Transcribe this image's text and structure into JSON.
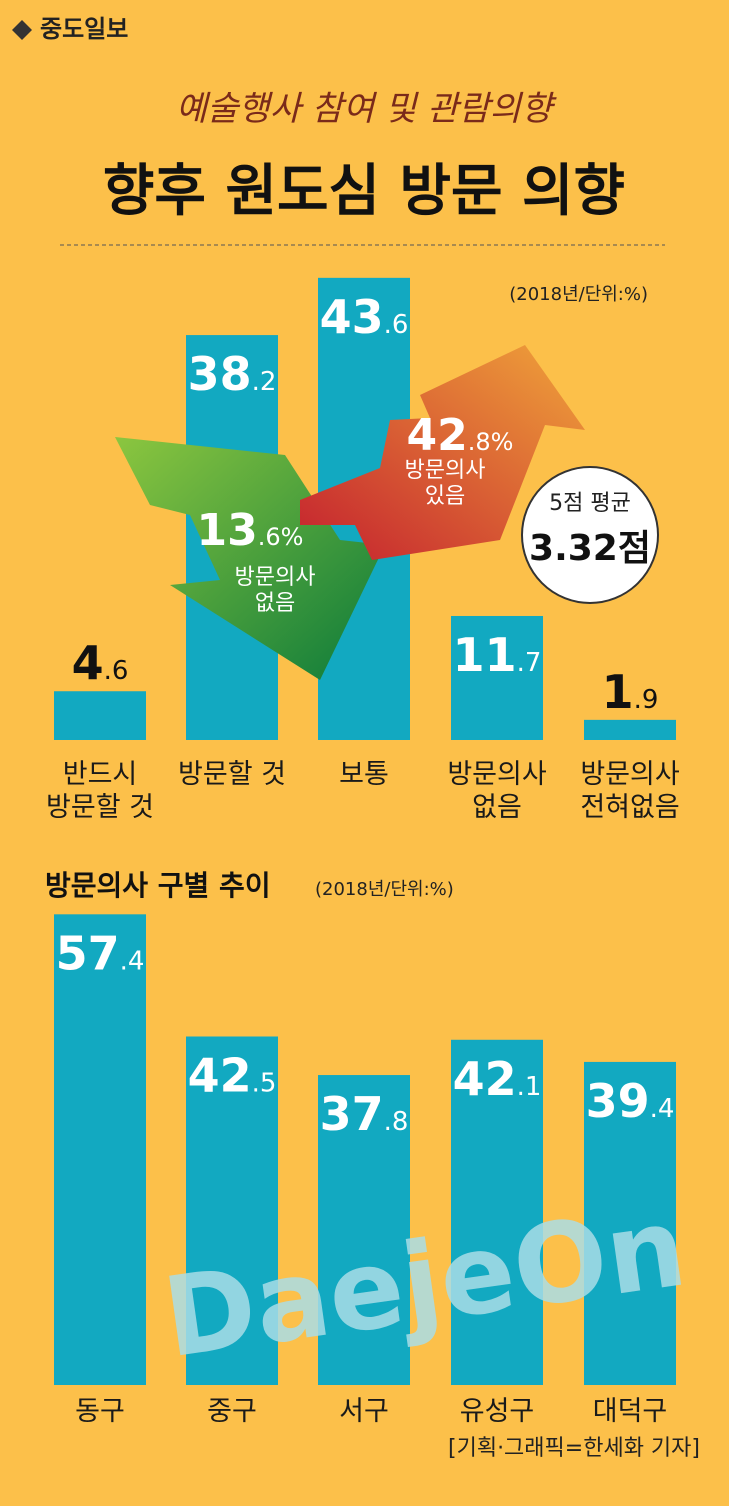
{
  "header": {
    "logo": "중도일보",
    "kicker": "예술행사 참여 및 관람의향",
    "title": "향후 원도심 방문 의향"
  },
  "chart_data": [
    {
      "type": "bar",
      "subtitle": "(2018년/단위:%)",
      "color": "#12a9c1",
      "categories": [
        "반드시\n방문할 것",
        "방문할 것",
        "보통",
        "방문의사\n없음",
        "방문의사\n전혀없음"
      ],
      "values": [
        4.6,
        38.2,
        43.6,
        11.7,
        1.9
      ],
      "annotations": [
        {
          "value_label": "13.6%",
          "label": "방문의사\n없음"
        },
        {
          "value_label": "42.8%",
          "label": "방문의사\n있음"
        }
      ],
      "mean": {
        "label": "5점 평균",
        "value_label": "3.32점"
      }
    },
    {
      "type": "bar",
      "title": "방문의사 구별 추이",
      "subtitle": "(2018년/단위:%)",
      "color": "#12a9c1",
      "categories": [
        "동구",
        "중구",
        "서구",
        "유성구",
        "대덕구"
      ],
      "values": [
        57.4,
        42.5,
        37.8,
        42.1,
        39.4
      ]
    }
  ],
  "watermark": "DaejeOn",
  "footer": "[기획·그래픽=한세화 기자]"
}
